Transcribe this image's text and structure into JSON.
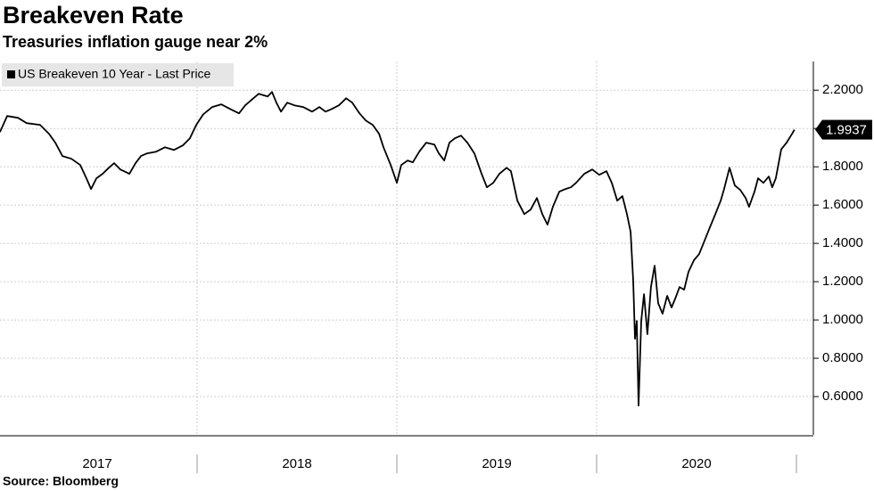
{
  "chart_data": {
    "type": "line",
    "title": "Breakeven Rate",
    "subtitle": "Treasuries inflation gauge near 2%",
    "source": "Source: Bloomberg",
    "xlim": [
      2017,
      2021
    ],
    "xticks": [
      2017,
      2018,
      2019,
      2020,
      2021
    ],
    "year_labels": [
      "2017",
      "2018",
      "2019",
      "2020"
    ],
    "ylim": [
      0.4,
      2.35
    ],
    "yticks": [
      {
        "value": 0.6,
        "label": "0.6000"
      },
      {
        "value": 0.8,
        "label": "0.8000"
      },
      {
        "value": 1.0,
        "label": "1.0000"
      },
      {
        "value": 1.2,
        "label": "1.2000"
      },
      {
        "value": 1.4,
        "label": "1.4000"
      },
      {
        "value": 1.6,
        "label": "1.6000"
      },
      {
        "value": 1.8,
        "label": "1.8000"
      },
      {
        "value": 2.0,
        "label": "2.0000"
      },
      {
        "value": 2.2,
        "label": "2.2000"
      }
    ],
    "grid": true,
    "legend": "top-left",
    "x": [
      2017.013,
      2017.049,
      2017.103,
      2017.147,
      2017.214,
      2017.259,
      2017.29,
      2017.326,
      2017.371,
      2017.415,
      2017.446,
      2017.469,
      2017.496,
      2017.527,
      2017.558,
      2017.585,
      2017.616,
      2017.661,
      2017.692,
      2017.719,
      2017.75,
      2017.795,
      2017.839,
      2017.884,
      2017.929,
      2017.964,
      2017.996,
      2018.031,
      2018.076,
      2018.121,
      2018.165,
      2018.21,
      2018.241,
      2018.272,
      2018.308,
      2018.353,
      2018.375,
      2018.397,
      2018.42,
      2018.451,
      2018.487,
      2018.531,
      2018.576,
      2018.612,
      2018.643,
      2018.674,
      2018.71,
      2018.746,
      2018.777,
      2018.813,
      2018.844,
      2018.879,
      2018.911,
      2018.933,
      2018.969,
      2019.0,
      2019.022,
      2019.054,
      2019.08,
      2019.112,
      2019.147,
      2019.188,
      2019.21,
      2019.237,
      2019.263,
      2019.29,
      2019.321,
      2019.353,
      2019.388,
      2019.424,
      2019.451,
      2019.482,
      2019.513,
      2019.549,
      2019.571,
      2019.603,
      2019.638,
      2019.67,
      2019.701,
      2019.728,
      2019.754,
      2019.781,
      2019.813,
      2019.844,
      2019.871,
      2019.897,
      2019.938,
      2019.978,
      2020.013,
      2020.049,
      2020.076,
      2020.103,
      2020.129,
      2020.152,
      2020.17,
      2020.183,
      2020.192,
      2020.201,
      2020.21,
      2020.223,
      2020.237,
      2020.254,
      2020.272,
      2020.29,
      2020.308,
      2020.33,
      2020.353,
      2020.375,
      2020.397,
      2020.415,
      2020.438,
      2020.46,
      2020.487,
      2020.513,
      2020.54,
      2020.567,
      2020.594,
      2020.621,
      2020.638,
      2020.665,
      2020.692,
      2020.719,
      2020.746,
      2020.763,
      2020.79,
      2020.808,
      2020.835,
      2020.862,
      2020.879,
      2020.897,
      2020.924,
      2020.951,
      2020.978,
      2020.99
    ],
    "series": [
      {
        "name": "US Breakeven 10 Year - Last Price",
        "color": "#000000",
        "values": [
          1.981,
          2.065,
          2.056,
          2.028,
          2.019,
          1.972,
          1.926,
          1.856,
          1.842,
          1.809,
          1.74,
          1.684,
          1.74,
          1.763,
          1.795,
          1.819,
          1.786,
          1.763,
          1.819,
          1.856,
          1.87,
          1.879,
          1.902,
          1.888,
          1.912,
          1.949,
          2.019,
          2.074,
          2.112,
          2.126,
          2.102,
          2.079,
          2.121,
          2.149,
          2.181,
          2.167,
          2.191,
          2.135,
          2.088,
          2.135,
          2.121,
          2.112,
          2.088,
          2.112,
          2.088,
          2.102,
          2.121,
          2.158,
          2.135,
          2.079,
          2.042,
          2.019,
          1.972,
          1.902,
          1.809,
          1.716,
          1.809,
          1.833,
          1.823,
          1.879,
          1.926,
          1.916,
          1.87,
          1.833,
          1.926,
          1.949,
          1.963,
          1.926,
          1.87,
          1.763,
          1.693,
          1.716,
          1.763,
          1.795,
          1.777,
          1.623,
          1.553,
          1.577,
          1.637,
          1.553,
          1.498,
          1.591,
          1.67,
          1.684,
          1.693,
          1.716,
          1.763,
          1.786,
          1.758,
          1.777,
          1.716,
          1.623,
          1.647,
          1.553,
          1.46,
          1.205,
          0.902,
          0.995,
          0.553,
          0.995,
          1.135,
          0.926,
          1.172,
          1.284,
          1.088,
          1.033,
          1.126,
          1.065,
          1.121,
          1.172,
          1.158,
          1.251,
          1.312,
          1.344,
          1.414,
          1.484,
          1.553,
          1.623,
          1.684,
          1.795,
          1.702,
          1.679,
          1.637,
          1.591,
          1.67,
          1.74,
          1.716,
          1.749,
          1.693,
          1.74,
          1.891,
          1.926,
          1.972,
          1.9937
        ]
      }
    ]
  }
}
